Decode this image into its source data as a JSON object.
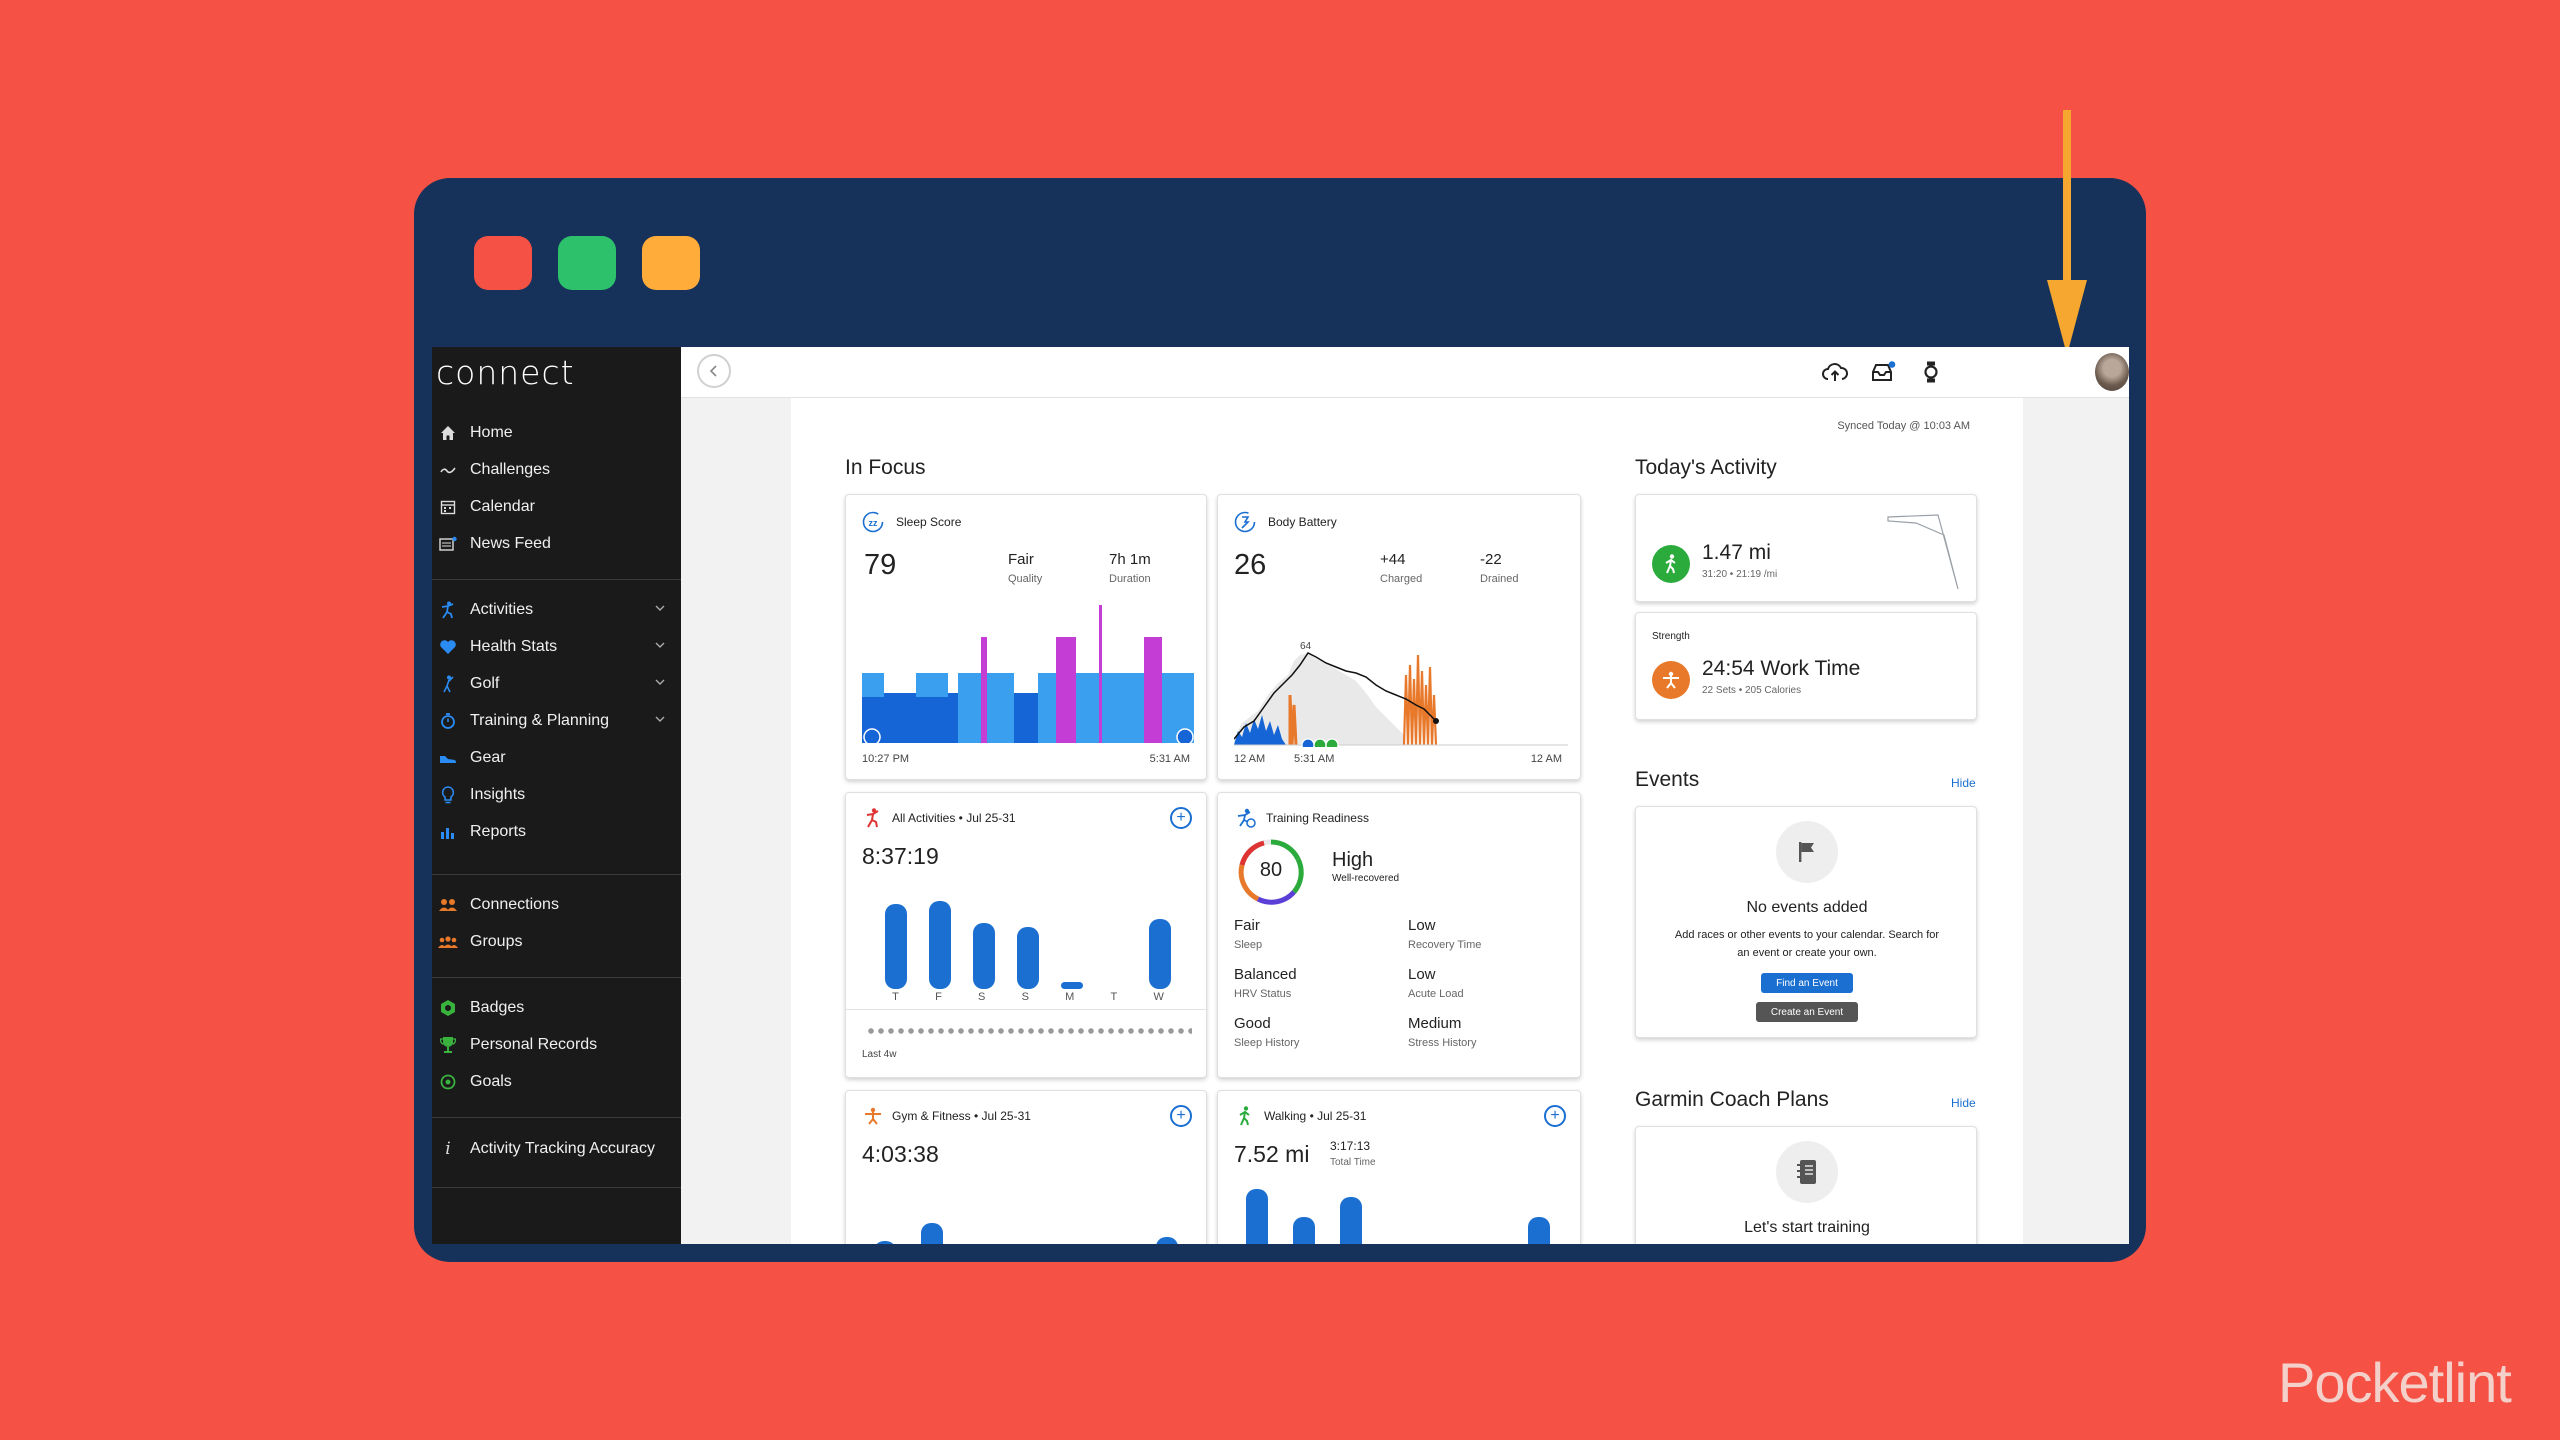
{
  "sidebar": {
    "logo": "connect",
    "items": [
      {
        "label": "Home"
      },
      {
        "label": "Challenges"
      },
      {
        "label": "Calendar"
      },
      {
        "label": "News Feed"
      },
      {
        "label": "Activities"
      },
      {
        "label": "Health Stats"
      },
      {
        "label": "Golf"
      },
      {
        "label": "Training & Planning"
      },
      {
        "label": "Gear"
      },
      {
        "label": "Insights"
      },
      {
        "label": "Reports"
      },
      {
        "label": "Connections"
      },
      {
        "label": "Groups"
      },
      {
        "label": "Badges"
      },
      {
        "label": "Personal Records"
      },
      {
        "label": "Goals"
      },
      {
        "label": "Activity Tracking Accuracy"
      }
    ]
  },
  "header": {
    "synced": "Synced Today @ 10:03 AM"
  },
  "in_focus": {
    "title": "In Focus",
    "sleep": {
      "title": "Sleep Score",
      "score": "79",
      "quality_value": "Fair",
      "quality_label": "Quality",
      "duration_value": "7h 1m",
      "duration_label": "Duration",
      "start": "10:27 PM",
      "end": "5:31 AM"
    },
    "body_battery": {
      "title": "Body Battery",
      "value": "26",
      "charged_value": "+44",
      "charged_label": "Charged",
      "drained_value": "-22",
      "drained_label": "Drained",
      "peak": "64",
      "axis": [
        "12 AM",
        "5:31 AM",
        "12 AM"
      ]
    },
    "all_activities": {
      "title": "All Activities • Jul 25-31",
      "value": "8:37:19",
      "days": [
        "T",
        "F",
        "S",
        "S",
        "M",
        "T",
        "W"
      ],
      "bars": [
        0.85,
        0.88,
        0.66,
        0.62,
        0.07,
        0,
        0.7
      ],
      "footer": "Last 4w"
    },
    "training_readiness": {
      "title": "Training Readiness",
      "score": "80",
      "level": "High",
      "sub": "Well-recovered",
      "factors": [
        {
          "value": "Fair",
          "label": "Sleep"
        },
        {
          "value": "Low",
          "label": "Recovery Time"
        },
        {
          "value": "Balanced",
          "label": "HRV Status"
        },
        {
          "value": "Low",
          "label": "Acute Load"
        },
        {
          "value": "Good",
          "label": "Sleep History"
        },
        {
          "value": "Medium",
          "label": "Stress History"
        }
      ]
    },
    "gym": {
      "title": "Gym & Fitness • Jul 25-31",
      "value": "4:03:38"
    },
    "walking": {
      "title": "Walking • Jul 25-31",
      "value": "7.52 mi",
      "time_value": "3:17:13",
      "time_label": "Total Time"
    }
  },
  "todays_activity": {
    "title": "Today's Activity",
    "walk": {
      "value": "1.47 mi",
      "sub": "31:20 • 21:19 /mi"
    },
    "strength": {
      "type": "Strength",
      "value": "24:54 Work Time",
      "sub": "22 Sets • 205 Calories"
    }
  },
  "events": {
    "title": "Events",
    "hide": "Hide",
    "empty": "No events added",
    "desc_line1": "Add races or other events to your calendar. Search for",
    "desc_line2": "an event or create your own.",
    "find_btn": "Find an Event",
    "create_btn": "Create an Event"
  },
  "coach": {
    "title": "Garmin Coach Plans",
    "hide": "Hide",
    "cta": "Let's start training"
  },
  "colors": {
    "background": "#f55245",
    "frame": "#16325a",
    "accent": "#1a6fd1",
    "sleep_light": "#3b9ff0",
    "sleep_deep": "#1565d6",
    "sleep_rem": "#c43ed6",
    "battery_orange": "#e8782a"
  },
  "watermark": "Pocketlint"
}
